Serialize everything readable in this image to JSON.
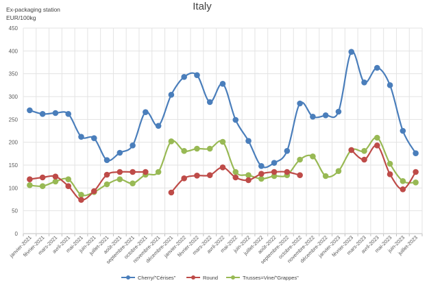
{
  "chart_data": {
    "type": "line",
    "title": "Italy",
    "subtitle_lines": [
      "Ex-packaging station",
      "EUR/100kg"
    ],
    "xlabel": "",
    "ylabel": "EUR/100kg",
    "ylim": [
      0,
      450
    ],
    "yticks": [
      0,
      50,
      100,
      150,
      200,
      250,
      300,
      350,
      400,
      450
    ],
    "grid": true,
    "legend_position": "bottom",
    "categories": [
      "janvier-2021",
      "février-2021",
      "mars-2021",
      "avril-2021",
      "mai-2021",
      "juin-2021",
      "juillet-2021",
      "août-2021",
      "septembre-2021",
      "octobre-2021",
      "novembre-2021",
      "décembre-2021",
      "janvier-2022",
      "février-2022",
      "mars-2022",
      "avril-2022",
      "mai-2022",
      "juin-2022",
      "juillet-2022",
      "août-2022",
      "septembre-2022",
      "octobre-2022",
      "novembre-2022",
      "décembre-2022",
      "janvier-2023",
      "février-2023",
      "mars-2023",
      "avril-2023",
      "mai-2023",
      "juin-2023",
      "juillet-2023"
    ],
    "series": [
      {
        "name": "Cherry/\"Cérises\"",
        "color": "#4a7ebb",
        "values": [
          270,
          262,
          264,
          262,
          212,
          209,
          161,
          177,
          193,
          266,
          236,
          304,
          343,
          347,
          288,
          328,
          249,
          203,
          148,
          155,
          181,
          285,
          256,
          259,
          267,
          398,
          331,
          363,
          325,
          225,
          176
        ]
      },
      {
        "name": "Round",
        "color": "#be4b48",
        "values": [
          119,
          123,
          125,
          104,
          74,
          93,
          129,
          135,
          135,
          135,
          null,
          90,
          121,
          127,
          128,
          145,
          123,
          117,
          131,
          135,
          135,
          128,
          null,
          null,
          null,
          183,
          162,
          193,
          130,
          97,
          135
        ]
      },
      {
        "name": "Trusses=Vine/\"Grappes\"",
        "color": "#98b954",
        "values": [
          106,
          104,
          114,
          119,
          85,
          91,
          108,
          119,
          110,
          129,
          135,
          202,
          181,
          186,
          186,
          201,
          135,
          128,
          120,
          126,
          128,
          162,
          169,
          126,
          137,
          183,
          181,
          210,
          153,
          115,
          112
        ]
      }
    ]
  }
}
